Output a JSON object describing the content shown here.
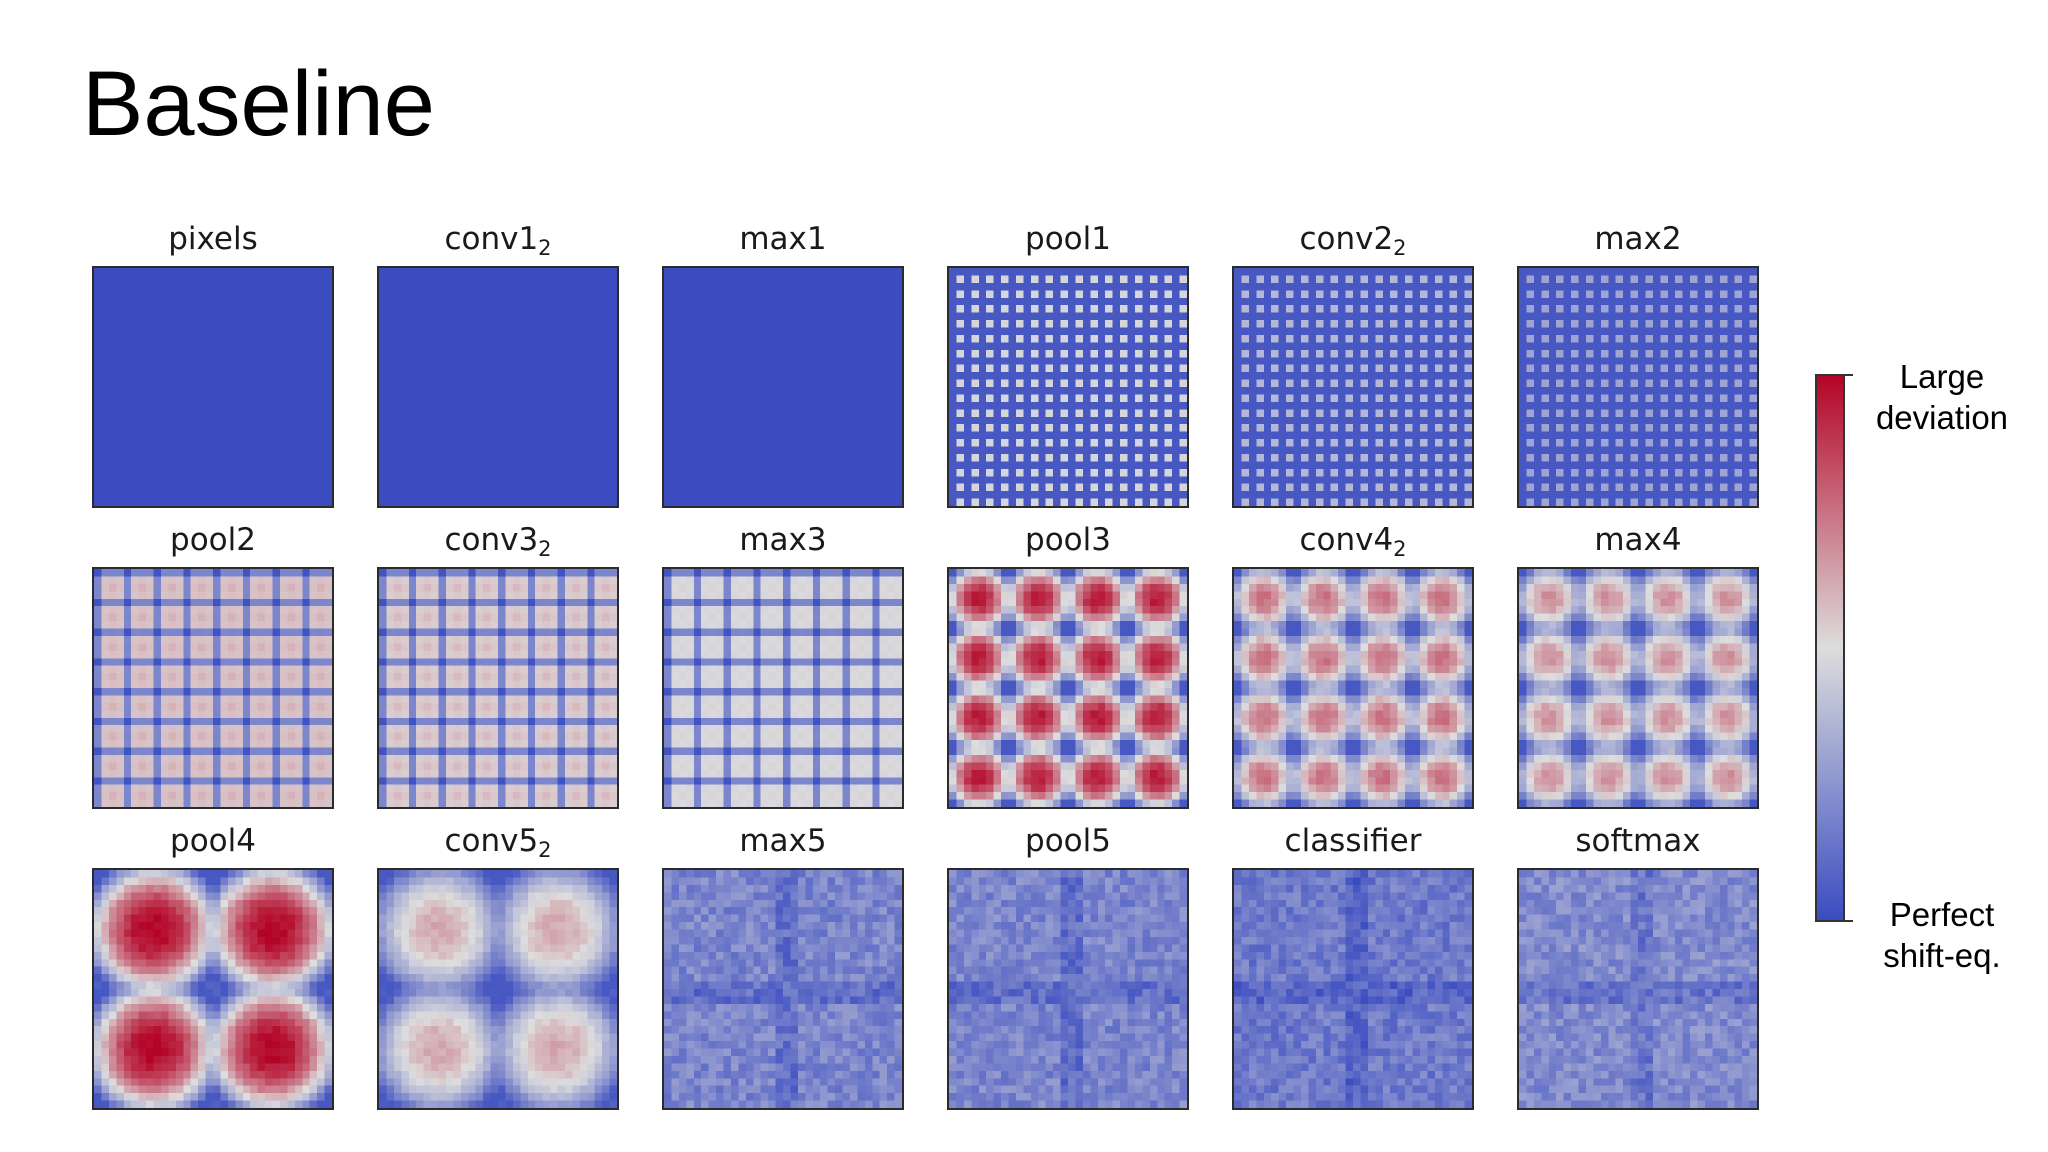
{
  "slide": {
    "title": "Baseline"
  },
  "colors": {
    "perfect": "#3b4cc0",
    "mid": "#dddddd",
    "large": "#b40426"
  },
  "colorbar": {
    "top_label_line1": "Large",
    "top_label_line2": "deviation",
    "bottom_label_line1": "Perfect",
    "bottom_label_line2": "shift-eq.",
    "scale": "coolwarm (0 = perfect shift-equivariance, 1 = large deviation)"
  },
  "panels": [
    {
      "label": "pixels",
      "sub": "",
      "pattern": "flat",
      "level": 0
    },
    {
      "label": "conv1",
      "sub": "2",
      "pattern": "flat",
      "level": 0
    },
    {
      "label": "max1",
      "sub": "",
      "pattern": "flat",
      "level": 0
    },
    {
      "label": "pool1",
      "sub": "",
      "pattern": "grid",
      "level": 0.28,
      "period": 2
    },
    {
      "label": "conv2",
      "sub": "2",
      "pattern": "grid",
      "level": 0.22,
      "period": 2
    },
    {
      "label": "max2",
      "sub": "",
      "pattern": "grid",
      "level": 0.18,
      "period": 2
    },
    {
      "label": "pool2",
      "sub": "",
      "pattern": "dots",
      "level": 0.6,
      "period": 4
    },
    {
      "label": "conv3",
      "sub": "2",
      "pattern": "dots",
      "level": 0.58,
      "period": 4
    },
    {
      "label": "max3",
      "sub": "",
      "pattern": "dots",
      "level": 0.52,
      "period": 4
    },
    {
      "label": "pool3",
      "sub": "",
      "pattern": "blobs",
      "level": 0.95,
      "period": 8
    },
    {
      "label": "conv4",
      "sub": "2",
      "pattern": "blobs",
      "level": 0.75,
      "period": 8
    },
    {
      "label": "max4",
      "sub": "",
      "pattern": "blobs",
      "level": 0.68,
      "period": 8
    },
    {
      "label": "pool4",
      "sub": "",
      "pattern": "big",
      "level": 1.0,
      "period": 16
    },
    {
      "label": "conv5",
      "sub": "2",
      "pattern": "big",
      "level": 0.62,
      "period": 16
    },
    {
      "label": "max5",
      "sub": "",
      "pattern": "noise",
      "level": 0.2
    },
    {
      "label": "pool5",
      "sub": "",
      "pattern": "noise",
      "level": 0.2
    },
    {
      "label": "classifier",
      "sub": "",
      "pattern": "noise",
      "level": 0.16
    },
    {
      "label": "softmax",
      "sub": "",
      "pattern": "noise",
      "level": 0.22
    }
  ]
}
